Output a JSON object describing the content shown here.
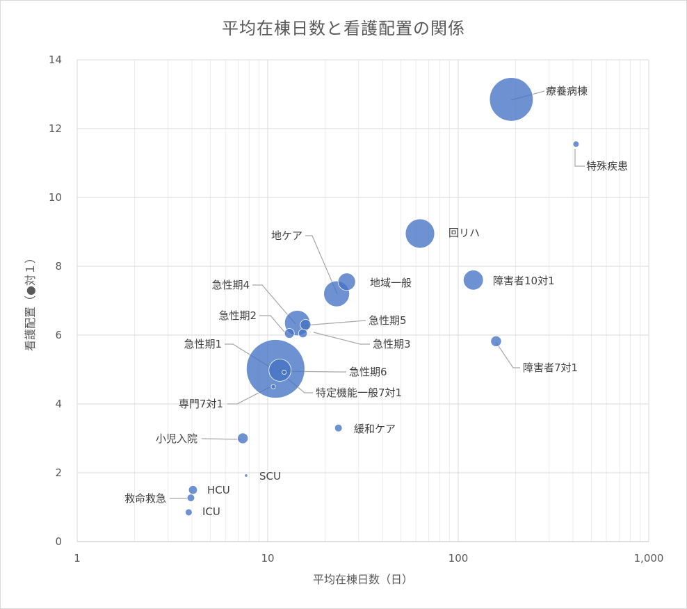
{
  "chart_data": {
    "type": "bubble",
    "title": "平均在棟日数と看護配置の関係",
    "xlabel": "平均在棟日数（日）",
    "ylabel": "看護配置（●対１）",
    "x_scale": "log",
    "xlim": [
      1,
      1000
    ],
    "ylim": [
      0,
      14
    ],
    "x_tick_labels": [
      "1",
      "10",
      "100",
      "1,000"
    ],
    "y_tick_labels": [
      "0",
      "2",
      "4",
      "6",
      "8",
      "10",
      "12",
      "14"
    ],
    "grid": "major and minor",
    "legend": "none",
    "bubble_color": "#4472c4",
    "points": [
      {
        "label": "療養病棟",
        "x": 190,
        "y": 12.85,
        "size": 100
      },
      {
        "label": "特殊疾患",
        "x": 415,
        "y": 11.55,
        "size": 2
      },
      {
        "label": "回リハ",
        "x": 63,
        "y": 8.95,
        "size": 45
      },
      {
        "label": "障害者10対1",
        "x": 120,
        "y": 7.6,
        "size": 21
      },
      {
        "label": "地域一般",
        "x": 26,
        "y": 7.55,
        "size": 16
      },
      {
        "label": "地ケア",
        "x": 23,
        "y": 7.2,
        "size": 35
      },
      {
        "label": "急性期4",
        "x": 14.3,
        "y": 6.35,
        "size": 34
      },
      {
        "label": "急性期5",
        "x": 15.8,
        "y": 6.3,
        "size": 6
      },
      {
        "label": "急性期2",
        "x": 13,
        "y": 6.05,
        "size": 5
      },
      {
        "label": "急性期3",
        "x": 15.3,
        "y": 6.05,
        "size": 4
      },
      {
        "label": "障害者7対1",
        "x": 158,
        "y": 5.82,
        "size": 6
      },
      {
        "label": "急性期1",
        "x": 11,
        "y": 5.02,
        "size": 180
      },
      {
        "label": "急性期6",
        "x": 11.6,
        "y": 4.98,
        "size": 26
      },
      {
        "label": "特定機能一般7対1",
        "x": 12.2,
        "y": 4.92,
        "size": 1
      },
      {
        "label": "専門7対1",
        "x": 10.7,
        "y": 4.5,
        "size": 1
      },
      {
        "label": "緩和ケア",
        "x": 23.5,
        "y": 3.3,
        "size": 3
      },
      {
        "label": "小児入院",
        "x": 7.4,
        "y": 3.0,
        "size": 6
      },
      {
        "label": "SCU",
        "x": 7.7,
        "y": 1.92,
        "size": 0.4
      },
      {
        "label": "HCU",
        "x": 4.05,
        "y": 1.5,
        "size": 4
      },
      {
        "label": "救命救急",
        "x": 3.95,
        "y": 1.27,
        "size": 3
      },
      {
        "label": "ICU",
        "x": 3.85,
        "y": 0.85,
        "size": 2.5
      }
    ]
  }
}
